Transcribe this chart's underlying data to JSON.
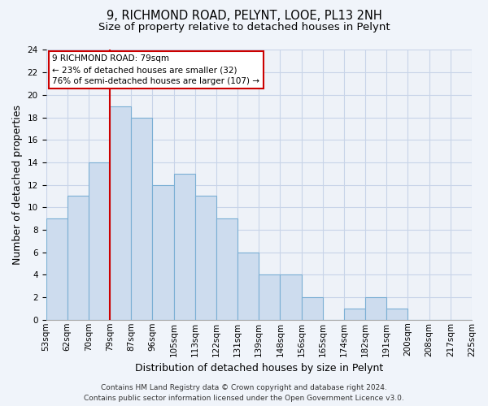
{
  "title_line1": "9, RICHMOND ROAD, PELYNT, LOOE, PL13 2NH",
  "title_line2": "Size of property relative to detached houses in Pelynt",
  "xlabel": "Distribution of detached houses by size in Pelynt",
  "ylabel": "Number of detached properties",
  "bin_labels": [
    "53sqm",
    "62sqm",
    "70sqm",
    "79sqm",
    "87sqm",
    "96sqm",
    "105sqm",
    "113sqm",
    "122sqm",
    "131sqm",
    "139sqm",
    "148sqm",
    "156sqm",
    "165sqm",
    "174sqm",
    "182sqm",
    "191sqm",
    "200sqm",
    "208sqm",
    "217sqm",
    "225sqm"
  ],
  "bar_values": [
    9,
    11,
    14,
    19,
    18,
    12,
    13,
    11,
    9,
    6,
    4,
    4,
    2,
    0,
    1,
    2,
    1,
    0,
    0,
    0
  ],
  "bar_color": "#cddcee",
  "bar_edgecolor": "#7bafd4",
  "red_line_index": 3,
  "annotation_title": "9 RICHMOND ROAD: 79sqm",
  "annotation_line2": "← 23% of detached houses are smaller (32)",
  "annotation_line3": "76% of semi-detached houses are larger (107) →",
  "annotation_box_edgecolor": "#cc0000",
  "red_line_color": "#cc0000",
  "ylim": [
    0,
    24
  ],
  "yticks": [
    0,
    2,
    4,
    6,
    8,
    10,
    12,
    14,
    16,
    18,
    20,
    22,
    24
  ],
  "footer_line1": "Contains HM Land Registry data © Crown copyright and database right 2024.",
  "footer_line2": "Contains public sector information licensed under the Open Government Licence v3.0.",
  "background_color": "#f0f4fa",
  "plot_bg_color": "#eef2f8",
  "grid_color": "#c8d4e8",
  "title_fontsize": 10.5,
  "subtitle_fontsize": 9.5,
  "axis_label_fontsize": 9,
  "tick_fontsize": 7.5,
  "footer_fontsize": 6.5
}
